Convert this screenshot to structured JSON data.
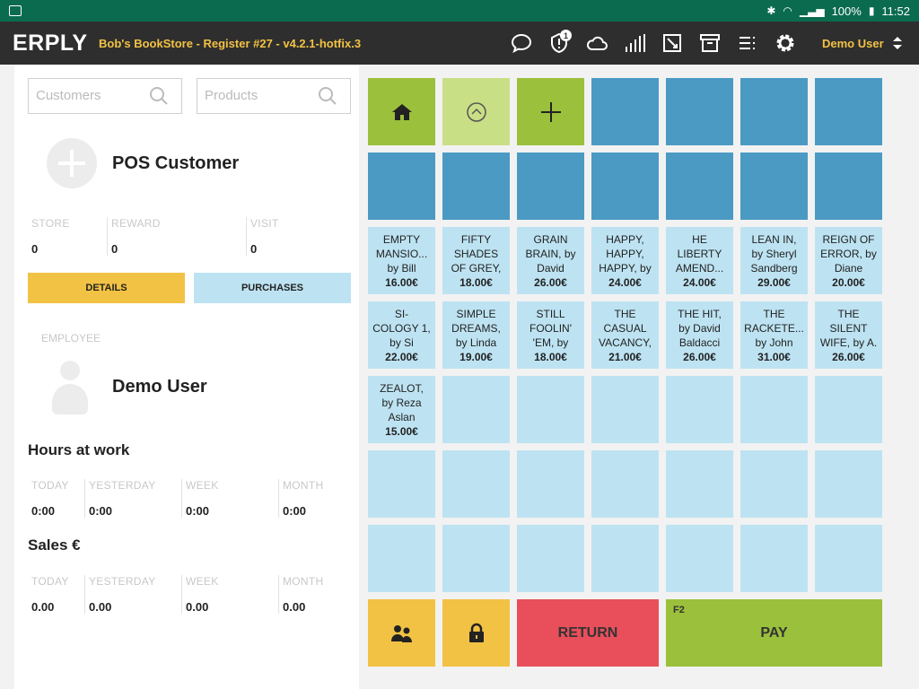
{
  "status_bar": {
    "battery": "100%",
    "time": "11:52"
  },
  "header": {
    "logo": "ERPLY",
    "title": "Bob's BookStore - Register #27 - v4.2.1-hotfix.3",
    "notification_count": "1",
    "user": "Demo User"
  },
  "search": {
    "customers_placeholder": "Customers",
    "products_placeholder": "Products"
  },
  "customer": {
    "name": "POS Customer",
    "stats": [
      {
        "label": "STORE",
        "value": "0"
      },
      {
        "label": "REWARD",
        "value": "0"
      },
      {
        "label": "VISIT",
        "value": "0"
      }
    ],
    "details_label": "DETAILS",
    "purchases_label": "PURCHASES"
  },
  "employee": {
    "label": "EMPLOYEE",
    "name": "Demo User"
  },
  "hours": {
    "title": "Hours at work",
    "items": [
      {
        "label": "TODAY",
        "value": "0:00"
      },
      {
        "label": "YESTERDAY",
        "value": "0:00"
      },
      {
        "label": "WEEK",
        "value": "0:00"
      },
      {
        "label": "MONTH",
        "value": "0:00"
      }
    ]
  },
  "sales": {
    "title": "Sales €",
    "items": [
      {
        "label": "TODAY",
        "value": "0.00"
      },
      {
        "label": "YESTERDAY",
        "value": "0.00"
      },
      {
        "label": "WEEK",
        "value": "0.00"
      },
      {
        "label": "MONTH",
        "value": "0.00"
      }
    ]
  },
  "products": [
    {
      "lines": [
        "EMPTY",
        "MANSIO...",
        "by Bill"
      ],
      "price": "16.00€"
    },
    {
      "lines": [
        "FIFTY",
        "SHADES",
        "OF GREY,"
      ],
      "price": "18.00€"
    },
    {
      "lines": [
        "GRAIN",
        "BRAIN, by",
        "David"
      ],
      "price": "26.00€"
    },
    {
      "lines": [
        "HAPPY,",
        "HAPPY,",
        "HAPPY, by"
      ],
      "price": "24.00€"
    },
    {
      "lines": [
        "HE",
        "LIBERTY",
        "AMEND..."
      ],
      "price": "24.00€"
    },
    {
      "lines": [
        "LEAN IN,",
        "by Sheryl",
        "Sandberg"
      ],
      "price": "29.00€"
    },
    {
      "lines": [
        "REIGN OF",
        "ERROR, by",
        "Diane"
      ],
      "price": "20.00€"
    },
    {
      "lines": [
        "SI-",
        "COLOGY 1,",
        "by Si"
      ],
      "price": "22.00€"
    },
    {
      "lines": [
        "SIMPLE",
        "DREAMS,",
        "by Linda"
      ],
      "price": "19.00€"
    },
    {
      "lines": [
        "STILL",
        "FOOLIN'",
        "'EM, by"
      ],
      "price": "18.00€"
    },
    {
      "lines": [
        "THE",
        "CASUAL",
        "VACANCY,"
      ],
      "price": "21.00€"
    },
    {
      "lines": [
        "THE HIT,",
        "by David",
        "Baldacci"
      ],
      "price": "26.00€"
    },
    {
      "lines": [
        "THE",
        "RACKETE...",
        "by John"
      ],
      "price": "31.00€"
    },
    {
      "lines": [
        "THE",
        "SILENT",
        "WIFE, by A."
      ],
      "price": "26.00€"
    },
    {
      "lines": [
        "ZEALOT,",
        "by Reza",
        "Aslan"
      ],
      "price": "15.00€"
    }
  ],
  "actions": {
    "return_label": "RETURN",
    "pay_label": "PAY",
    "pay_shortcut": "F2"
  }
}
